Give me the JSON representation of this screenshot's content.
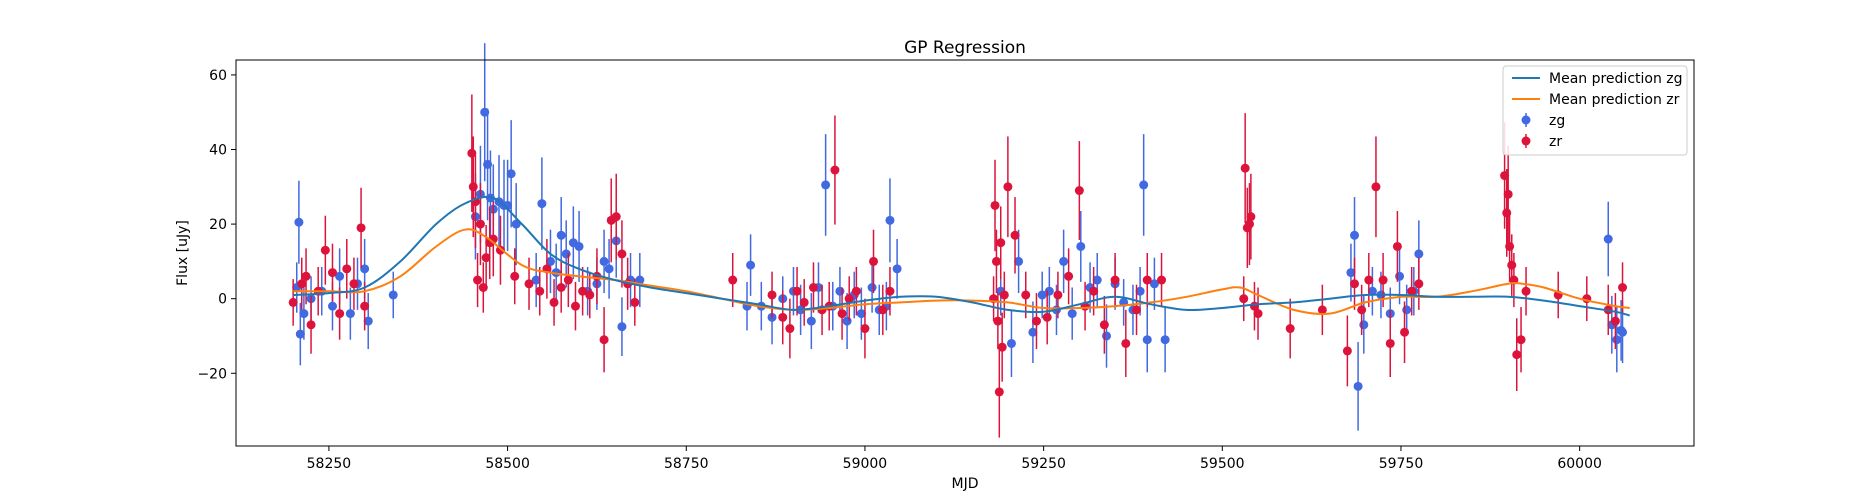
{
  "chart_data": {
    "type": "scatter",
    "title": "GP Regression",
    "xlabel": "MJD",
    "ylabel": "Flux [uJy]",
    "xlim": [
      58120,
      60160
    ],
    "ylim": [
      -39.5,
      64
    ],
    "xticks": [
      58250,
      58500,
      58750,
      59000,
      59250,
      59500,
      59750,
      60000
    ],
    "yticks": [
      -20,
      0,
      20,
      40,
      60
    ],
    "xtick_labels": [
      "58250",
      "58500",
      "58750",
      "59000",
      "59250",
      "59500",
      "59750",
      "60000"
    ],
    "ytick_labels": [
      "−20",
      "0",
      "20",
      "40",
      "60"
    ],
    "grid": false,
    "legend_position": "top-right",
    "legend": {
      "line_zg": "Mean prediction zg",
      "line_zr": "Mean prediction zr",
      "points_zg": "zg",
      "points_zr": "zr"
    },
    "colors": {
      "line_zg": "#1f77b4",
      "line_zr": "#ff7f0e",
      "points_zg": "#4169e1",
      "points_zr": "#dc143c"
    },
    "mean_prediction_zg": {
      "x": [
        58200,
        58250,
        58300,
        58350,
        58400,
        58440,
        58480,
        58520,
        58560,
        58600,
        58650,
        58700,
        58750,
        58800,
        58850,
        58900,
        58950,
        59000,
        59050,
        59100,
        59150,
        59200,
        59250,
        59300,
        59350,
        59400,
        59450,
        59500,
        59550,
        59600,
        59650,
        59700,
        59750,
        59800,
        59850,
        59900,
        59950,
        60000,
        60050,
        60070
      ],
      "y": [
        1.0,
        1.5,
        3.0,
        10.0,
        20.0,
        25.5,
        27.0,
        20.0,
        12.0,
        8.0,
        5.0,
        3.0,
        1.5,
        0.0,
        -1.5,
        -3.0,
        -2.0,
        -0.5,
        0.5,
        0.5,
        -1.0,
        -3.0,
        -3.5,
        -1.5,
        0.5,
        -1.5,
        -3.0,
        -2.5,
        -1.5,
        -1.0,
        0.0,
        1.0,
        1.0,
        0.5,
        0.5,
        0.5,
        -0.5,
        -2.0,
        -3.5,
        -4.5
      ]
    },
    "mean_prediction_zr": {
      "x": [
        58200,
        58250,
        58300,
        58350,
        58400,
        58440,
        58470,
        58520,
        58560,
        58600,
        58650,
        58700,
        58750,
        58800,
        58850,
        58900,
        58950,
        59000,
        59050,
        59100,
        59150,
        59200,
        59250,
        59300,
        59350,
        59400,
        59450,
        59500,
        59525,
        59550,
        59600,
        59650,
        59700,
        59750,
        59800,
        59850,
        59900,
        59920,
        59950,
        60000,
        60050,
        60070
      ],
      "y": [
        2.0,
        2.0,
        2.0,
        6.0,
        14.0,
        18.5,
        16.5,
        9.0,
        7.0,
        6.0,
        5.0,
        3.5,
        2.0,
        0.0,
        -2.0,
        -3.0,
        -2.5,
        -1.5,
        -1.0,
        -0.5,
        -0.5,
        -1.0,
        -2.5,
        -2.5,
        -2.0,
        -1.0,
        0.5,
        2.5,
        3.0,
        1.0,
        -3.0,
        -4.0,
        -1.0,
        0.5,
        0.5,
        2.0,
        4.0,
        4.0,
        3.0,
        0.0,
        -2.0,
        -2.5
      ]
    },
    "zg": {
      "x": [
        58205,
        58208,
        58210,
        58215,
        58225,
        58240,
        58255,
        58265,
        58280,
        58290,
        58300,
        58305,
        58340,
        58455,
        58462,
        58468,
        58472,
        58476,
        58480,
        58488,
        58495,
        58500,
        58505,
        58512,
        58540,
        58548,
        58560,
        58568,
        58575,
        58582,
        58592,
        58600,
        58612,
        58625,
        58635,
        58642,
        58652,
        58660,
        58672,
        58685,
        58835,
        58840,
        58855,
        58870,
        58885,
        58900,
        58910,
        58925,
        58935,
        58945,
        58955,
        58965,
        58975,
        58985,
        58995,
        59010,
        59020,
        59030,
        59035,
        59045,
        59190,
        59205,
        59215,
        59235,
        59248,
        59258,
        59268,
        59278,
        59290,
        59302,
        59315,
        59325,
        59338,
        59350,
        59362,
        59375,
        59385,
        59390,
        59395,
        59405,
        59420,
        59680,
        59685,
        59690,
        59698,
        59710,
        59722,
        59735,
        59748,
        59758,
        59768,
        59775,
        60040,
        60045,
        60052,
        60058,
        60060
      ],
      "y": [
        3,
        20.5,
        -9.5,
        -4,
        0,
        2,
        -2,
        6,
        -4,
        4,
        8,
        -6,
        1,
        22,
        28,
        50,
        36,
        27,
        24,
        26,
        25,
        25,
        33.5,
        20,
        5,
        25.5,
        10,
        7,
        17,
        12,
        15,
        14,
        2,
        4,
        10,
        8,
        15.5,
        -7.5,
        5,
        5,
        -2,
        9,
        -2,
        -5,
        0,
        2,
        -3,
        -6,
        3,
        30.5,
        -2,
        2,
        -6,
        1,
        -4,
        3,
        -3,
        -2,
        21,
        8,
        2,
        -12,
        10,
        -9,
        1,
        2,
        -3,
        10,
        -4,
        14,
        3,
        5,
        -10,
        4,
        -1,
        -3,
        2,
        30.5,
        -11,
        4,
        -11,
        7,
        17,
        -23.5,
        -7,
        2,
        1,
        -4,
        6,
        -3,
        2,
        12,
        16,
        -7,
        -11,
        -8.5,
        -9
      ]
    },
    "zr": {
      "x": [
        58200,
        58212,
        58218,
        58225,
        58235,
        58245,
        58255,
        58265,
        58275,
        58285,
        58295,
        58300,
        58450,
        58452,
        58455,
        58458,
        58462,
        58466,
        58470,
        58475,
        58480,
        58490,
        58510,
        58530,
        58545,
        58555,
        58565,
        58575,
        58585,
        58595,
        58605,
        58615,
        58625,
        58635,
        58645,
        58652,
        58660,
        58668,
        58678,
        58815,
        58870,
        58885,
        58895,
        58905,
        58915,
        58928,
        58940,
        58950,
        58958,
        58968,
        58978,
        58988,
        59000,
        59012,
        59025,
        59035,
        59180,
        59182,
        59184,
        59186,
        59188,
        59190,
        59192,
        59195,
        59200,
        59210,
        59225,
        59240,
        59255,
        59270,
        59285,
        59300,
        59308,
        59320,
        59335,
        59350,
        59365,
        59380,
        59395,
        59415,
        59530,
        59532,
        59535,
        59538,
        59540,
        59545,
        59550,
        59595,
        59640,
        59675,
        59685,
        59695,
        59705,
        59715,
        59725,
        59735,
        59745,
        59755,
        59765,
        59775,
        59895,
        59898,
        59900,
        59902,
        59905,
        59908,
        59912,
        59918,
        59925,
        59970,
        60010,
        60040,
        60050,
        60060
      ],
      "y": [
        -1,
        4,
        6,
        -7,
        2,
        13,
        7,
        -4,
        8,
        4,
        19,
        -2,
        39,
        30,
        26,
        5,
        20,
        3,
        11,
        15,
        16,
        13,
        6,
        4,
        2,
        8,
        -1,
        3,
        5,
        -2,
        2,
        1,
        6,
        -11,
        21,
        22,
        12,
        4,
        -1,
        5,
        1,
        -5,
        -8,
        2,
        -1,
        3,
        -3,
        -2,
        34.5,
        -4,
        0,
        2,
        -8,
        10,
        -3,
        2,
        0,
        25,
        10,
        -6,
        -25,
        15,
        -13,
        1,
        30,
        17,
        1,
        -6,
        -5,
        1,
        6,
        29,
        -2,
        2,
        -7,
        5,
        -12,
        -3,
        5,
        5,
        0,
        35,
        19,
        20,
        22,
        -2,
        -4,
        -8,
        -3,
        -14,
        4,
        -3,
        5,
        30,
        5,
        -12,
        14,
        -9,
        2,
        4,
        33,
        23,
        28,
        14,
        9,
        5,
        -15,
        -11,
        2,
        1,
        0,
        -3,
        -6,
        3
      ]
    }
  }
}
